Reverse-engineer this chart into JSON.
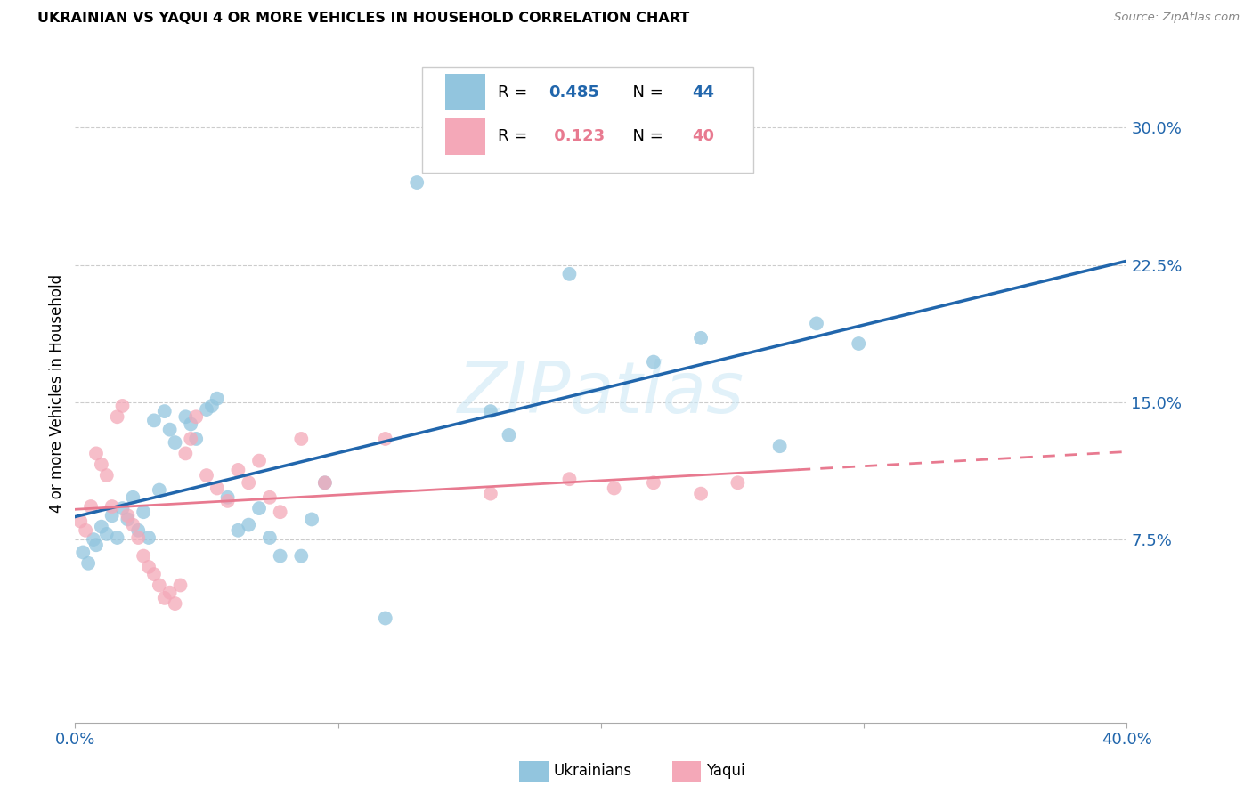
{
  "title": "UKRAINIAN VS YAQUI 4 OR MORE VEHICLES IN HOUSEHOLD CORRELATION CHART",
  "source": "Source: ZipAtlas.com",
  "ylabel": "4 or more Vehicles in Household",
  "ytick_labels": [
    "7.5%",
    "15.0%",
    "22.5%",
    "30.0%"
  ],
  "ytick_values": [
    0.075,
    0.15,
    0.225,
    0.3
  ],
  "xlim": [
    0.0,
    0.4
  ],
  "ylim": [
    -0.025,
    0.335
  ],
  "ukrainian_color": "#92c5de",
  "yaqui_color": "#f4a8b8",
  "ukrainian_line_color": "#2166ac",
  "yaqui_line_color": "#e87a90",
  "watermark": "ZIPatlas",
  "ukrainian_points": [
    [
      0.003,
      0.068
    ],
    [
      0.005,
      0.062
    ],
    [
      0.007,
      0.075
    ],
    [
      0.008,
      0.072
    ],
    [
      0.01,
      0.082
    ],
    [
      0.012,
      0.078
    ],
    [
      0.014,
      0.088
    ],
    [
      0.016,
      0.076
    ],
    [
      0.018,
      0.092
    ],
    [
      0.02,
      0.086
    ],
    [
      0.022,
      0.098
    ],
    [
      0.024,
      0.08
    ],
    [
      0.026,
      0.09
    ],
    [
      0.028,
      0.076
    ],
    [
      0.03,
      0.14
    ],
    [
      0.032,
      0.102
    ],
    [
      0.034,
      0.145
    ],
    [
      0.036,
      0.135
    ],
    [
      0.038,
      0.128
    ],
    [
      0.042,
      0.142
    ],
    [
      0.044,
      0.138
    ],
    [
      0.046,
      0.13
    ],
    [
      0.05,
      0.146
    ],
    [
      0.052,
      0.148
    ],
    [
      0.054,
      0.152
    ],
    [
      0.058,
      0.098
    ],
    [
      0.062,
      0.08
    ],
    [
      0.066,
      0.083
    ],
    [
      0.07,
      0.092
    ],
    [
      0.074,
      0.076
    ],
    [
      0.078,
      0.066
    ],
    [
      0.086,
      0.066
    ],
    [
      0.09,
      0.086
    ],
    [
      0.095,
      0.106
    ],
    [
      0.118,
      0.032
    ],
    [
      0.13,
      0.27
    ],
    [
      0.158,
      0.145
    ],
    [
      0.165,
      0.132
    ],
    [
      0.188,
      0.22
    ],
    [
      0.22,
      0.172
    ],
    [
      0.238,
      0.185
    ],
    [
      0.268,
      0.126
    ],
    [
      0.282,
      0.193
    ],
    [
      0.298,
      0.182
    ]
  ],
  "yaqui_points": [
    [
      0.002,
      0.085
    ],
    [
      0.004,
      0.08
    ],
    [
      0.006,
      0.093
    ],
    [
      0.008,
      0.122
    ],
    [
      0.01,
      0.116
    ],
    [
      0.012,
      0.11
    ],
    [
      0.014,
      0.093
    ],
    [
      0.016,
      0.142
    ],
    [
      0.018,
      0.148
    ],
    [
      0.02,
      0.088
    ],
    [
      0.022,
      0.083
    ],
    [
      0.024,
      0.076
    ],
    [
      0.026,
      0.066
    ],
    [
      0.028,
      0.06
    ],
    [
      0.03,
      0.056
    ],
    [
      0.032,
      0.05
    ],
    [
      0.034,
      0.043
    ],
    [
      0.036,
      0.046
    ],
    [
      0.038,
      0.04
    ],
    [
      0.04,
      0.05
    ],
    [
      0.042,
      0.122
    ],
    [
      0.044,
      0.13
    ],
    [
      0.046,
      0.142
    ],
    [
      0.05,
      0.11
    ],
    [
      0.054,
      0.103
    ],
    [
      0.058,
      0.096
    ],
    [
      0.062,
      0.113
    ],
    [
      0.066,
      0.106
    ],
    [
      0.07,
      0.118
    ],
    [
      0.074,
      0.098
    ],
    [
      0.078,
      0.09
    ],
    [
      0.086,
      0.13
    ],
    [
      0.095,
      0.106
    ],
    [
      0.118,
      0.13
    ],
    [
      0.158,
      0.1
    ],
    [
      0.188,
      0.108
    ],
    [
      0.205,
      0.103
    ],
    [
      0.22,
      0.106
    ],
    [
      0.238,
      0.1
    ],
    [
      0.252,
      0.106
    ]
  ]
}
